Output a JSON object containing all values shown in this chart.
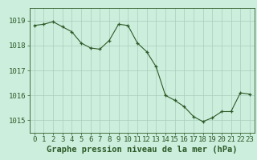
{
  "x": [
    0,
    1,
    2,
    3,
    4,
    5,
    6,
    7,
    8,
    9,
    10,
    11,
    12,
    13,
    14,
    15,
    16,
    17,
    18,
    19,
    20,
    21,
    22,
    23
  ],
  "y": [
    1018.8,
    1018.85,
    1018.95,
    1018.75,
    1018.55,
    1018.1,
    1017.9,
    1017.85,
    1018.2,
    1018.85,
    1018.8,
    1018.1,
    1017.75,
    1017.15,
    1016.0,
    1015.8,
    1015.55,
    1015.15,
    1014.95,
    1015.1,
    1015.35,
    1015.35,
    1016.1,
    1016.05
  ],
  "line_color": "#2d5a27",
  "marker_color": "#2d5a27",
  "bg_color": "#cceedd",
  "grid_color": "#aaccbb",
  "xlabel": "Graphe pression niveau de la mer (hPa)",
  "xlabel_color": "#2d5a27",
  "tick_color": "#2d5a27",
  "ylim": [
    1014.5,
    1019.5
  ],
  "yticks": [
    1015,
    1016,
    1017,
    1018,
    1019
  ],
  "xticks": [
    0,
    1,
    2,
    3,
    4,
    5,
    6,
    7,
    8,
    9,
    10,
    11,
    12,
    13,
    14,
    15,
    16,
    17,
    18,
    19,
    20,
    21,
    22,
    23
  ],
  "font_size_label": 7.5,
  "font_size_tick": 6.5
}
